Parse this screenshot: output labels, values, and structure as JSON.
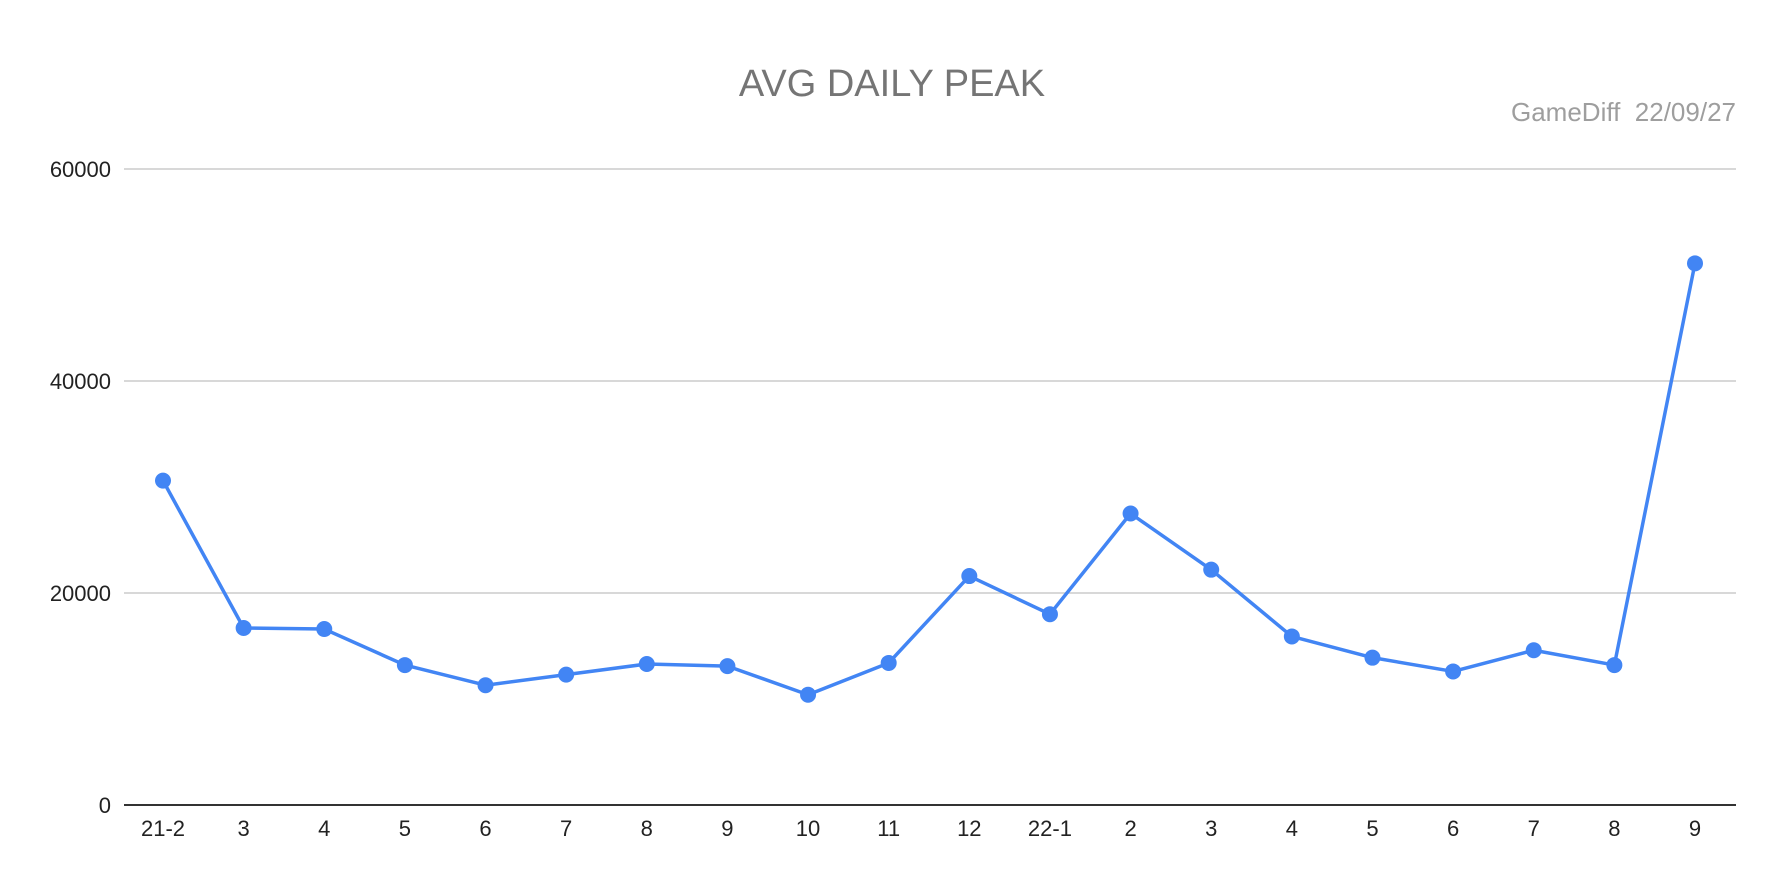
{
  "chart_data": {
    "type": "line",
    "title": "AVG DAILY PEAK",
    "source": "GameDiff  22/09/27",
    "xlabel": "",
    "ylabel": "",
    "categories": [
      "21-2",
      "3",
      "4",
      "5",
      "6",
      "7",
      "8",
      "9",
      "10",
      "11",
      "12",
      "22-1",
      "2",
      "3",
      "4",
      "5",
      "6",
      "7",
      "8",
      "9"
    ],
    "series": [
      {
        "color": "#4285f4",
        "values": [
          30600,
          16700,
          16600,
          13200,
          11300,
          12300,
          13300,
          13100,
          10400,
          13400,
          21600,
          18000,
          27500,
          22200,
          15900,
          13900,
          12600,
          14600,
          13200,
          51100
        ]
      }
    ],
    "ylim": [
      0,
      60000
    ],
    "yticks": [
      "0",
      "20000",
      "40000",
      "60000"
    ],
    "grid": true,
    "legend": "none"
  }
}
